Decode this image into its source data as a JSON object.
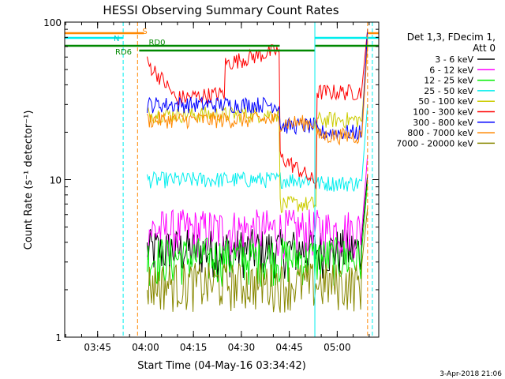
{
  "chart_data": {
    "type": "line",
    "title": "HESSI Observing Summary Count Rates",
    "xlabel": "Start Time (04-May-16 03:34:42)",
    "ylabel": "Count Rate (s⁻¹ detector⁻¹)",
    "yscale": "log",
    "ylim": [
      1,
      100
    ],
    "xlim_minutes": [
      "03:34:42",
      "05:13:00"
    ],
    "x_ticks": [
      "03:45",
      "04:00",
      "04:15",
      "04:30",
      "04:45",
      "05:00"
    ],
    "y_ticks": [
      "1",
      "10",
      "100"
    ],
    "legend_header": [
      "Det 1,3, FDecim 1,",
      "Att 0"
    ],
    "series": [
      {
        "name": "3 - 6 keV",
        "color": "#000000",
        "level": 3.6
      },
      {
        "name": "6 - 12 keV",
        "color": "#ff00ff",
        "level": 4.8
      },
      {
        "name": "12 - 25 keV",
        "color": "#00ee00",
        "level": 3.2
      },
      {
        "name": "25 - 50 keV",
        "color": "#00eeee",
        "level": 10.0
      },
      {
        "name": "50 - 100 keV",
        "color": "#cccc00",
        "level": 26
      },
      {
        "name": "100 - 300 keV",
        "color": "#ff0000",
        "level": 45
      },
      {
        "name": "300 - 800 keV",
        "color": "#0000ff",
        "level": 30
      },
      {
        "name": "800 - 7000 keV",
        "color": "#ff8800",
        "level": 24
      },
      {
        "name": "7000 - 20000 keV",
        "color": "#888800",
        "level": 2.2
      }
    ],
    "flag_labels": {
      "saa": "S",
      "night": "N",
      "rd0": "RD0",
      "rd6": "RD6"
    },
    "timestamp": "3-Apr-2018 21:06"
  }
}
